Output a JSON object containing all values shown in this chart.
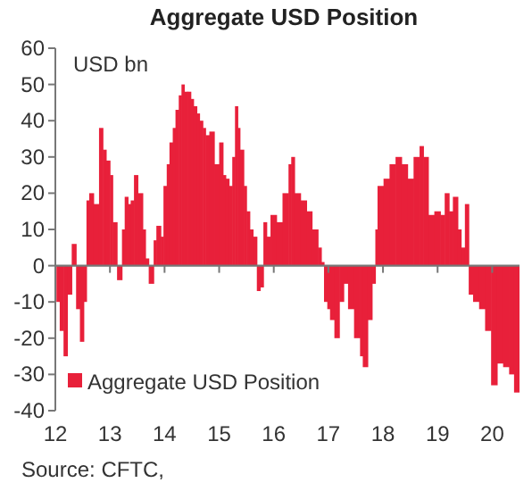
{
  "chart_data": {
    "type": "bar",
    "title": "Aggregate USD Position",
    "ylabel": "USD bn",
    "annotations": [
      "Source: CFTC,"
    ],
    "x": [
      2012.02,
      2012.08,
      2012.15,
      2012.22,
      2012.3,
      2012.38,
      2012.45,
      2012.52,
      2012.57,
      2012.62,
      2012.7,
      2012.8,
      2012.87,
      2012.93,
      2013.0,
      2013.05,
      2013.13,
      2013.22,
      2013.27,
      2013.33,
      2013.38,
      2013.44,
      2013.51,
      2013.6,
      2013.65,
      2013.71,
      2013.8,
      2013.85,
      2013.93,
      2013.98,
      2014.04,
      2014.09,
      2014.15,
      2014.2,
      2014.26,
      2014.31,
      2014.36,
      2014.42,
      2014.48,
      2014.53,
      2014.59,
      2014.64,
      2014.7,
      2014.75,
      2014.82,
      2014.91,
      2015.0,
      2015.07,
      2015.12,
      2015.18,
      2015.24,
      2015.29,
      2015.34,
      2015.38,
      2015.45,
      2015.5,
      2015.56,
      2015.62,
      2015.69,
      2015.75,
      2015.81,
      2015.87,
      2015.94,
      2016.05,
      2016.16,
      2016.27,
      2016.32,
      2016.38,
      2016.49,
      2016.6,
      2016.7,
      2016.81,
      2016.87,
      2016.92,
      2016.98,
      2017.03,
      2017.11,
      2017.2,
      2017.28,
      2017.36,
      2017.47,
      2017.58,
      2017.63,
      2017.72,
      2017.8,
      2017.86,
      2017.9,
      2018.01,
      2018.12,
      2018.23,
      2018.34,
      2018.45,
      2018.56,
      2018.67,
      2018.74,
      2018.83,
      2018.94,
      2019.05,
      2019.13,
      2019.21,
      2019.28,
      2019.37,
      2019.43,
      2019.5,
      2019.57,
      2019.65,
      2019.76,
      2019.87,
      2019.98,
      2020.09,
      2020.2,
      2020.31,
      2020.4
    ],
    "series": [
      {
        "name": "Aggregate USD Position",
        "color": "#e8203a",
        "values": [
          -10,
          -18,
          -25,
          -8,
          6,
          -12,
          -21,
          -10,
          18,
          20,
          17,
          38,
          32,
          29,
          25,
          12,
          -4,
          10,
          19,
          17,
          18,
          25,
          20,
          10,
          2,
          -5,
          7,
          11,
          8,
          22,
          28,
          34,
          38,
          43,
          47,
          50,
          48,
          48,
          46,
          44,
          42,
          40,
          38,
          36,
          37,
          28,
          34,
          25,
          24,
          22,
          30,
          44,
          38,
          32,
          22,
          15,
          10,
          8,
          -7,
          -6,
          12,
          8,
          14,
          12,
          20,
          28,
          30,
          20,
          18,
          15,
          10,
          5,
          1,
          -10,
          -12,
          -15,
          -20,
          -10,
          -5,
          -12,
          -20,
          -25,
          -28,
          -15,
          -5,
          10,
          22,
          24,
          28,
          30,
          28,
          24,
          30,
          33,
          30,
          14,
          15,
          14,
          20,
          15,
          19,
          10,
          5,
          17,
          -8,
          -10,
          -12,
          -18,
          -33,
          -27,
          -28,
          -30,
          -35
        ]
      }
    ],
    "legend": "bottom",
    "xlim": [
      2012,
      2020.5
    ],
    "xticks": [
      {
        "value": 2012,
        "label": "12"
      },
      {
        "value": 2013,
        "label": "13"
      },
      {
        "value": 2014,
        "label": "14"
      },
      {
        "value": 2015,
        "label": "15"
      },
      {
        "value": 2016,
        "label": "16"
      },
      {
        "value": 2017,
        "label": "17"
      },
      {
        "value": 2018,
        "label": "18"
      },
      {
        "value": 2019,
        "label": "19"
      },
      {
        "value": 2020,
        "label": "20"
      }
    ],
    "ylim": [
      -40,
      60
    ],
    "yticks": [
      -40,
      -30,
      -20,
      -10,
      0,
      10,
      20,
      30,
      40,
      50,
      60
    ]
  }
}
